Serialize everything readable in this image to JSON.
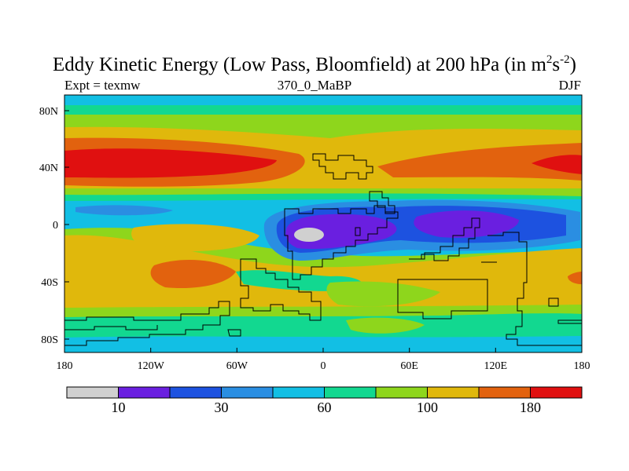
{
  "title": {
    "main": "Eddy Kinetic Energy (Low Pass, Bloomfield) at 200 hPa (in m",
    "sup1": "2",
    "mid": "s",
    "sup2": "-2",
    "end": ")"
  },
  "subtitle": {
    "left": "Expt = texmw",
    "center": "370_0_MaBP",
    "right": "DJF"
  },
  "axes": {
    "x_ticks": [
      "180",
      "120W",
      "60W",
      "0",
      "60E",
      "120E",
      "180"
    ],
    "y_ticks": [
      "80N",
      "40N",
      "0",
      "40S",
      "80S"
    ]
  },
  "colorbar": {
    "colors": [
      "#d0d0d0",
      "#6a1fe0",
      "#1d52e0",
      "#2a8ee2",
      "#12bfe4",
      "#12d890",
      "#8ed61c",
      "#e0b80c",
      "#e2620e",
      "#e01010"
    ],
    "labels": [
      "10",
      "30",
      "60",
      "100",
      "180"
    ]
  },
  "palette": {
    "gray": "#d0d0d0",
    "purple": "#6a1fe0",
    "blue": "#1d52e0",
    "mid_blue": "#2a8ee2",
    "cyan": "#12bfe4",
    "teal": "#12d890",
    "lime": "#8ed61c",
    "gold": "#e0b80c",
    "orange": "#e2620e",
    "red": "#e01010"
  }
}
